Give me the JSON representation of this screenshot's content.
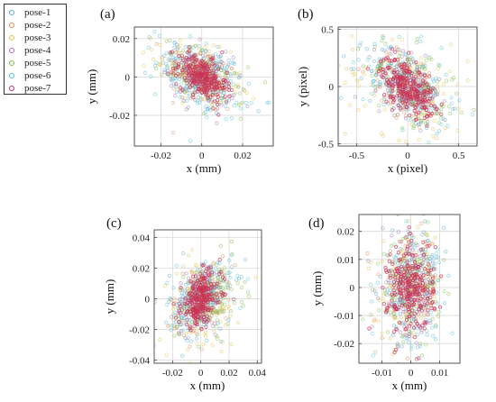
{
  "legend": {
    "entries": [
      {
        "label": "pose-1",
        "color": "#5aa9d6"
      },
      {
        "label": "pose-2",
        "color": "#d98a5a"
      },
      {
        "label": "pose-3",
        "color": "#e6c24a"
      },
      {
        "label": "pose-4",
        "color": "#9a6fb0"
      },
      {
        "label": "pose-5",
        "color": "#7dbb4a"
      },
      {
        "label": "pose-6",
        "color": "#52c2d6"
      },
      {
        "label": "pose-7",
        "color": "#cc3355"
      }
    ]
  },
  "chart_data": [
    {
      "panel": "(a)",
      "type": "scatter",
      "xlabel": "x (mm)",
      "ylabel": "y (mm)",
      "xlim": [
        -0.033,
        0.035
      ],
      "ylim": [
        -0.036,
        0.026
      ],
      "xticks": [
        -0.02,
        0,
        0.02
      ],
      "xtick_labels": [
        "-0.02",
        "0",
        "0.02"
      ],
      "yticks": [
        -0.02,
        0,
        0.02
      ],
      "ytick_labels": [
        "-0.02",
        "0",
        "0.02"
      ],
      "grid": true,
      "series": [
        {
          "name": "pose-1",
          "center": [
            0.0,
            0.0
          ],
          "spread": [
            0.01,
            0.01
          ],
          "corr": -0.4
        },
        {
          "name": "pose-2",
          "center": [
            0.0,
            0.0
          ],
          "spread": [
            0.009,
            0.009
          ],
          "corr": -0.4
        },
        {
          "name": "pose-3",
          "center": [
            -0.001,
            0.001
          ],
          "spread": [
            0.011,
            0.009
          ],
          "corr": -0.5
        },
        {
          "name": "pose-4",
          "center": [
            0.0,
            0.0
          ],
          "spread": [
            0.008,
            0.008
          ],
          "corr": -0.3
        },
        {
          "name": "pose-5",
          "center": [
            0.001,
            0.0
          ],
          "spread": [
            0.01,
            0.008
          ],
          "corr": -0.5
        },
        {
          "name": "pose-6",
          "center": [
            0.0,
            0.0
          ],
          "spread": [
            0.011,
            0.01
          ],
          "corr": -0.4
        },
        {
          "name": "pose-7",
          "center": [
            0.0,
            0.0
          ],
          "spread": [
            0.006,
            0.006
          ],
          "corr": -0.5
        }
      ]
    },
    {
      "panel": "(b)",
      "type": "scatter",
      "xlabel": "x (pixel)",
      "ylabel": "y (pixel)",
      "xlim": [
        -0.68,
        0.68
      ],
      "ylim": [
        -0.52,
        0.52
      ],
      "xticks": [
        -0.5,
        0,
        0.5
      ],
      "xtick_labels": [
        "-0.5",
        "0",
        "0.5"
      ],
      "yticks": [
        -0.5,
        0,
        0.5
      ],
      "ytick_labels": [
        "-0.5",
        "0",
        "0.5"
      ],
      "grid": true,
      "series": [
        {
          "name": "pose-1",
          "center": [
            0.0,
            0.0
          ],
          "spread": [
            0.2,
            0.18
          ],
          "corr": -0.4
        },
        {
          "name": "pose-2",
          "center": [
            0.0,
            0.0
          ],
          "spread": [
            0.18,
            0.16
          ],
          "corr": -0.4
        },
        {
          "name": "pose-3",
          "center": [
            0.0,
            0.0
          ],
          "spread": [
            0.3,
            0.25
          ],
          "corr": -0.3
        },
        {
          "name": "pose-4",
          "center": [
            0.0,
            0.0
          ],
          "spread": [
            0.16,
            0.14
          ],
          "corr": -0.4
        },
        {
          "name": "pose-5",
          "center": [
            0.05,
            0.0
          ],
          "spread": [
            0.24,
            0.2
          ],
          "corr": -0.5
        },
        {
          "name": "pose-6",
          "center": [
            0.0,
            0.0
          ],
          "spread": [
            0.22,
            0.2
          ],
          "corr": -0.4
        },
        {
          "name": "pose-7",
          "center": [
            0.0,
            0.0
          ],
          "spread": [
            0.13,
            0.12
          ],
          "corr": -0.5
        }
      ]
    },
    {
      "panel": "(c)",
      "type": "scatter",
      "xlabel": "x (mm)",
      "ylabel": "y (mm)",
      "xlim": [
        -0.033,
        0.043
      ],
      "ylim": [
        -0.042,
        0.045
      ],
      "xticks": [
        -0.02,
        0,
        0.02,
        0.04
      ],
      "xtick_labels": [
        "-0.02",
        "0",
        "0.02",
        "0.04"
      ],
      "yticks": [
        -0.04,
        -0.02,
        0,
        0.02,
        0.04
      ],
      "ytick_labels": [
        "-0.04",
        "-0.02",
        "0",
        "0.02",
        "0.04"
      ],
      "grid": true,
      "series": [
        {
          "name": "pose-1",
          "center": [
            0.0,
            0.0
          ],
          "spread": [
            0.011,
            0.013
          ],
          "corr": 0.3
        },
        {
          "name": "pose-2",
          "center": [
            0.0,
            0.0
          ],
          "spread": [
            0.01,
            0.012
          ],
          "corr": 0.3
        },
        {
          "name": "pose-3",
          "center": [
            0.0,
            -0.004
          ],
          "spread": [
            0.014,
            0.016
          ],
          "corr": 0.2
        },
        {
          "name": "pose-4",
          "center": [
            0.0,
            0.0
          ],
          "spread": [
            0.009,
            0.011
          ],
          "corr": 0.3
        },
        {
          "name": "pose-5",
          "center": [
            0.006,
            0.0
          ],
          "spread": [
            0.012,
            0.012
          ],
          "corr": 0.2
        },
        {
          "name": "pose-6",
          "center": [
            0.0,
            0.0
          ],
          "spread": [
            0.011,
            0.012
          ],
          "corr": 0.3
        },
        {
          "name": "pose-7",
          "center": [
            0.0,
            0.0
          ],
          "spread": [
            0.007,
            0.009
          ],
          "corr": 0.4
        }
      ]
    },
    {
      "panel": "(d)",
      "type": "scatter",
      "xlabel": "x (mm)",
      "ylabel": "y (mm)",
      "xlim": [
        -0.018,
        0.017
      ],
      "ylim": [
        -0.027,
        0.026
      ],
      "xticks": [
        -0.01,
        0,
        0.01
      ],
      "xtick_labels": [
        "-0.01",
        "0",
        "0.01"
      ],
      "yticks": [
        -0.02,
        -0.01,
        0,
        0.01,
        0.02
      ],
      "ytick_labels": [
        "-0.02",
        "-0.01",
        "0",
        "0.01",
        "0.02"
      ],
      "grid": true,
      "series": [
        {
          "name": "pose-1",
          "center": [
            0.0,
            0.0
          ],
          "spread": [
            0.0055,
            0.01
          ],
          "corr": 0.1
        },
        {
          "name": "pose-2",
          "center": [
            0.0,
            0.0
          ],
          "spread": [
            0.005,
            0.009
          ],
          "corr": 0.1
        },
        {
          "name": "pose-3",
          "center": [
            0.0,
            0.0
          ],
          "spread": [
            0.0055,
            0.01
          ],
          "corr": 0.1
        },
        {
          "name": "pose-4",
          "center": [
            0.0,
            0.0
          ],
          "spread": [
            0.005,
            0.01
          ],
          "corr": 0.1
        },
        {
          "name": "pose-5",
          "center": [
            0.0,
            0.0
          ],
          "spread": [
            0.005,
            0.009
          ],
          "corr": 0.1
        },
        {
          "name": "pose-6",
          "center": [
            0.0,
            0.0
          ],
          "spread": [
            0.0055,
            0.009
          ],
          "corr": 0.1
        },
        {
          "name": "pose-7",
          "center": [
            0.0,
            0.0
          ],
          "spread": [
            0.004,
            0.008
          ],
          "corr": 0.1
        }
      ]
    }
  ]
}
